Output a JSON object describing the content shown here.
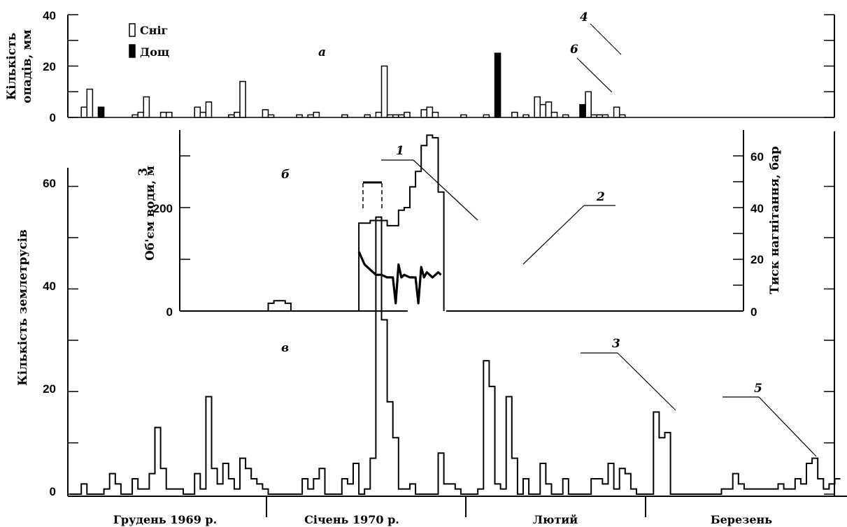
{
  "chart_data": [
    {
      "panel": "a",
      "type": "bar",
      "panel_tag": "а",
      "ylabel_lines": [
        "Кількість",
        "опадів, мм"
      ],
      "ylim": [
        0,
        40
      ],
      "yticks": [
        0,
        20,
        40
      ],
      "legend": [
        {
          "name": "Сніг",
          "style": "outline"
        },
        {
          "name": "Дощ",
          "style": "filled"
        }
      ],
      "series": [
        {
          "name": "Сніг",
          "points": [
            [
              2,
              4
            ],
            [
              3,
              11
            ],
            [
              11,
              1
            ],
            [
              12,
              2
            ],
            [
              13,
              8
            ],
            [
              16,
              2
            ],
            [
              17,
              2
            ],
            [
              22,
              4
            ],
            [
              23,
              2
            ],
            [
              24,
              6
            ],
            [
              28,
              1
            ],
            [
              29,
              2
            ],
            [
              30,
              14
            ],
            [
              34,
              3
            ],
            [
              35,
              1
            ],
            [
              40,
              1
            ],
            [
              42,
              1
            ],
            [
              43,
              2
            ],
            [
              48,
              1
            ],
            [
              52,
              1
            ],
            [
              54,
              2
            ],
            [
              55,
              20
            ],
            [
              56,
              1
            ],
            [
              57,
              1
            ],
            [
              58,
              1
            ],
            [
              59,
              2
            ],
            [
              62,
              3
            ],
            [
              63,
              4
            ],
            [
              64,
              2
            ],
            [
              69,
              1
            ],
            [
              73,
              1
            ],
            [
              78,
              2
            ],
            [
              80,
              1
            ],
            [
              82,
              8
            ],
            [
              83,
              5
            ],
            [
              84,
              6
            ],
            [
              85,
              2
            ],
            [
              87,
              1
            ],
            [
              91,
              10
            ],
            [
              92,
              1
            ],
            [
              93,
              1
            ],
            [
              94,
              1
            ],
            [
              96,
              4
            ],
            [
              97,
              1
            ]
          ]
        },
        {
          "name": "Дощ",
          "points": [
            [
              5,
              4
            ],
            [
              75,
              25
            ],
            [
              90,
              5
            ]
          ]
        }
      ],
      "annotations": [
        {
          "label": "4"
        },
        {
          "label": "6"
        }
      ]
    },
    {
      "panel": "б",
      "type": "line",
      "panel_tag": "б",
      "ylabel_left": "Об'єм води, м",
      "ylabel_left_sup": "3",
      "ylabel_right": "Тиск нагнітання, бар",
      "ylim_left": [
        0,
        400
      ],
      "yticks_left": [
        0,
        200
      ],
      "ylim_right": [
        0,
        68
      ],
      "yticks_right": [
        0,
        20,
        40,
        60
      ],
      "series": [
        {
          "name": "1",
          "label": "Об'єм води",
          "points": [
            [
              35,
              15
            ],
            [
              36,
              20
            ],
            [
              37,
              20
            ],
            [
              38,
              15
            ],
            [
              39,
              0
            ],
            [
              51,
              170
            ],
            [
              53,
              175
            ],
            [
              54,
              175
            ],
            [
              55,
              175
            ],
            [
              56,
              165
            ],
            [
              57,
              165
            ],
            [
              58,
              195
            ],
            [
              59,
              200
            ],
            [
              60,
              240
            ],
            [
              61,
              270
            ],
            [
              62,
              320
            ],
            [
              63,
              340
            ],
            [
              64,
              335
            ],
            [
              65,
              230
            ],
            [
              66,
              0
            ]
          ]
        },
        {
          "name": "2",
          "label": "Тиск нагнітання",
          "points": [
            [
              51,
              23
            ],
            [
              52,
              18
            ],
            [
              53,
              16
            ],
            [
              54,
              14
            ],
            [
              55,
              14
            ],
            [
              56,
              13
            ],
            [
              57,
              13
            ],
            [
              57.5,
              3
            ],
            [
              58,
              18
            ],
            [
              58.5,
              13
            ],
            [
              59,
              14
            ],
            [
              60,
              13
            ],
            [
              61,
              13
            ],
            [
              61.5,
              3
            ],
            [
              62,
              17
            ],
            [
              62.5,
              13
            ],
            [
              63,
              15
            ],
            [
              64,
              13
            ],
            [
              65,
              15
            ],
            [
              65.5,
              14
            ]
          ]
        }
      ],
      "annotations": [
        {
          "label": "1"
        },
        {
          "label": "2"
        }
      ]
    },
    {
      "panel": "в",
      "type": "bar",
      "panel_tag": "в",
      "ylabel": "Кількість землетрусів",
      "ylim": [
        0,
        63
      ],
      "yticks": [
        0,
        20,
        40,
        60
      ],
      "categories_months": [
        "Грудень 1969 р.",
        "Січень 1970 р.",
        "Лютий",
        "Березень"
      ],
      "series": [
        {
          "name": "Кількість землетрусів",
          "values": [
            0,
            0,
            2,
            0,
            0,
            0,
            1,
            4,
            2,
            0,
            0,
            3,
            1,
            1,
            4,
            13,
            5,
            1,
            1,
            1,
            0,
            0,
            4,
            1,
            19,
            5,
            2,
            6,
            3,
            1,
            7,
            5,
            3,
            2,
            1,
            0,
            0,
            0,
            0,
            0,
            0,
            3,
            1,
            3,
            5,
            0,
            0,
            0,
            3,
            2,
            6,
            0,
            1,
            7,
            54,
            34,
            18,
            11,
            1,
            1,
            2,
            0,
            0,
            0,
            0,
            8,
            2,
            2,
            1,
            0,
            0,
            0,
            1,
            26,
            21,
            2,
            1,
            19,
            7,
            0,
            3,
            0,
            0,
            6,
            2,
            0,
            0,
            3,
            0,
            0,
            0,
            0,
            3,
            3,
            2,
            6,
            1,
            5,
            4,
            1,
            0,
            0,
            0,
            16,
            11,
            12,
            0,
            0,
            0,
            0,
            0,
            0,
            0,
            0,
            0,
            1,
            1,
            4,
            2,
            1,
            1,
            1,
            1,
            1,
            1,
            2,
            1,
            1,
            3,
            2,
            6,
            7,
            3,
            1,
            2,
            3
          ]
        }
      ],
      "annotations": [
        {
          "label": "3"
        },
        {
          "label": "5"
        }
      ]
    }
  ]
}
